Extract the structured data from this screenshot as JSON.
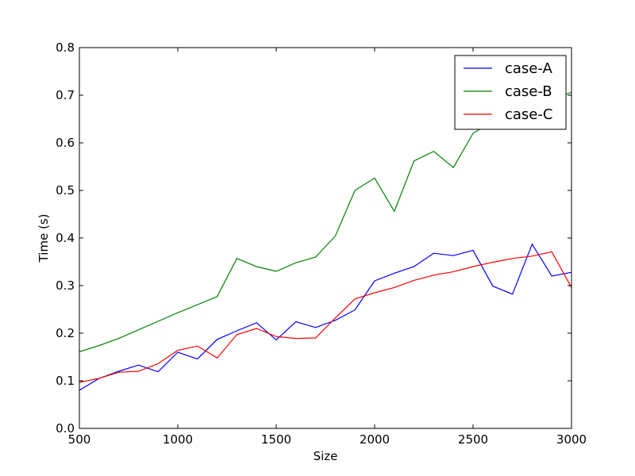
{
  "chart_data": {
    "type": "line",
    "title": "",
    "xlabel": "Size",
    "ylabel": "Time (s)",
    "xlim": [
      500,
      3000
    ],
    "ylim": [
      0.0,
      0.8
    ],
    "x_ticks": [
      "500",
      "1000",
      "1500",
      "2000",
      "2500",
      "3000"
    ],
    "y_ticks": [
      "0.0",
      "0.1",
      "0.2",
      "0.3",
      "0.4",
      "0.5",
      "0.6",
      "0.7",
      "0.8"
    ],
    "x_tick_values": [
      500,
      1000,
      1500,
      2000,
      2500,
      3000
    ],
    "y_tick_values": [
      0.0,
      0.1,
      0.2,
      0.3,
      0.4,
      0.5,
      0.6,
      0.7,
      0.8
    ],
    "grid": false,
    "legend_position": "top-right",
    "x": [
      500,
      600,
      700,
      800,
      900,
      1000,
      1100,
      1200,
      1300,
      1400,
      1500,
      1600,
      1700,
      1800,
      1900,
      2000,
      2100,
      2200,
      2300,
      2400,
      2500,
      2600,
      2700,
      2800,
      2900,
      3000
    ],
    "series": [
      {
        "name": "case-A",
        "color": "#0000ff",
        "values": [
          0.08,
          0.105,
          0.12,
          0.133,
          0.119,
          0.16,
          0.146,
          0.187,
          0.205,
          0.222,
          0.186,
          0.224,
          0.212,
          0.227,
          0.249,
          0.31,
          0.326,
          0.34,
          0.368,
          0.363,
          0.374,
          0.299,
          0.282,
          0.387,
          0.32,
          0.328
        ]
      },
      {
        "name": "case-B",
        "color": "#008000",
        "values": [
          0.161,
          0.174,
          0.189,
          0.207,
          0.225,
          0.243,
          0.26,
          0.277,
          0.357,
          0.34,
          0.33,
          0.348,
          0.36,
          0.404,
          0.5,
          0.526,
          0.456,
          0.562,
          0.582,
          0.548,
          0.62,
          0.645,
          0.665,
          0.68,
          0.692,
          0.706
        ]
      },
      {
        "name": "case-C",
        "color": "#ff0000",
        "values": [
          0.097,
          0.105,
          0.118,
          0.12,
          0.136,
          0.164,
          0.173,
          0.148,
          0.197,
          0.21,
          0.193,
          0.189,
          0.19,
          0.232,
          0.272,
          0.285,
          0.296,
          0.311,
          0.322,
          0.329,
          0.34,
          0.349,
          0.357,
          0.362,
          0.371,
          0.296
        ]
      }
    ]
  }
}
